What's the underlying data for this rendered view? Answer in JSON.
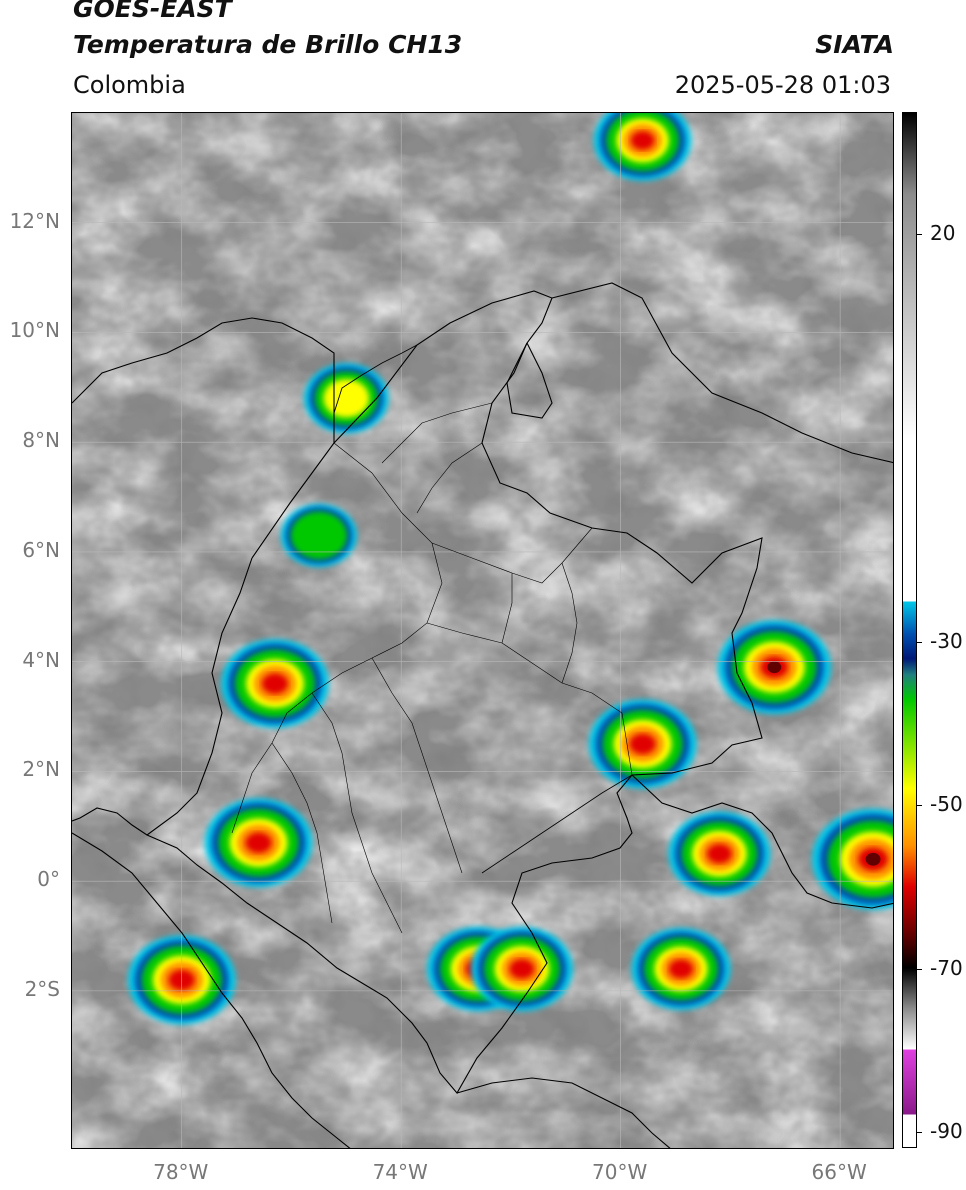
{
  "header": {
    "satellite": "GOES-EAST",
    "product": "Temperatura de Brillo CH13",
    "organization": "SIATA",
    "region": "Colombia",
    "timestamp": "2025-05-28 01:03"
  },
  "map": {
    "lat_range": [
      -4.9,
      14.0
    ],
    "lon_range": [
      -80.0,
      -65.0
    ],
    "lat_ticks": [
      "12°N",
      "10°N",
      "8°N",
      "6°N",
      "4°N",
      "2°N",
      "0°",
      "2°S"
    ],
    "lon_ticks": [
      "78°W",
      "74°W",
      "70°W",
      "66°W"
    ],
    "background_color": "#8a8a8a"
  },
  "colorbar": {
    "ticks": [
      "20",
      "-30",
      "-50",
      "-70",
      "-90"
    ],
    "range": [
      -92,
      35
    ],
    "colors": {
      "warm_top": "#000000",
      "warm_mid": "#8c8c8c",
      "warm_low": "#ffffff",
      "cyan": "#00c8e8",
      "blue": "#0050b0",
      "navy": "#001878",
      "teal": "#208080",
      "green": "#00c800",
      "yellow": "#ffff00",
      "orange": "#ff9000",
      "red": "#e00000",
      "darkred": "#600000",
      "magenta": "#e040e0",
      "purple": "#8a1a8a"
    }
  },
  "features": [
    {
      "type": "convective_cell",
      "lat": 3.6,
      "lon": -76.3,
      "min_bt": -62
    },
    {
      "type": "convective_cell",
      "lat": 0.7,
      "lon": -76.6,
      "min_bt": -62
    },
    {
      "type": "convective_cell",
      "lat": 2.5,
      "lon": -69.6,
      "min_bt": -62
    },
    {
      "type": "convective_cell",
      "lat": 3.9,
      "lon": -67.2,
      "min_bt": -66
    },
    {
      "type": "convective_cell",
      "lat": 0.5,
      "lon": -68.2,
      "min_bt": -58
    },
    {
      "type": "convective_cell",
      "lat": 0.4,
      "lon": -65.4,
      "min_bt": -72
    },
    {
      "type": "convective_cell",
      "lat": -1.6,
      "lon": -68.9,
      "min_bt": -56
    },
    {
      "type": "convective_cell",
      "lat": -1.6,
      "lon": -72.6,
      "min_bt": -58
    },
    {
      "type": "convective_cell",
      "lat": -1.6,
      "lon": -71.8,
      "min_bt": -58
    },
    {
      "type": "convective_cell",
      "lat": -1.8,
      "lon": -78.0,
      "min_bt": -62
    },
    {
      "type": "convective_cell",
      "lat": 6.3,
      "lon": -75.5,
      "min_bt": -40
    },
    {
      "type": "convective_cell",
      "lat": 8.8,
      "lon": -75.0,
      "min_bt": -46
    },
    {
      "type": "convective_cell",
      "lat": 13.5,
      "lon": -69.6,
      "min_bt": -55
    }
  ]
}
